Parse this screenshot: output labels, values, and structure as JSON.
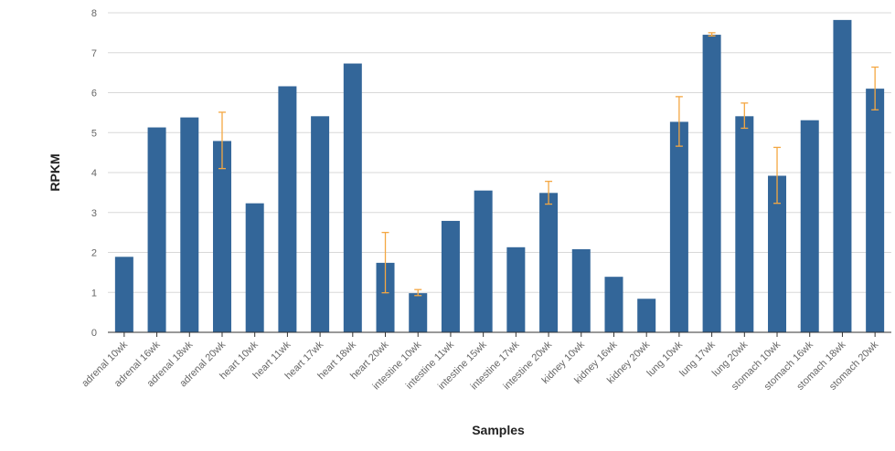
{
  "chart_data": {
    "type": "bar",
    "xlabel": "Samples",
    "ylabel": "RPKM",
    "ylim": [
      0,
      8
    ],
    "yticks": [
      0,
      1,
      2,
      3,
      4,
      5,
      6,
      7,
      8
    ],
    "grid": true,
    "categories": [
      "adrenal 10wk",
      "adrenal 16wk",
      "adrenal 18wk",
      "adrenal 20wk",
      "heart 10wk",
      "heart 11wk",
      "heart 17wk",
      "heart 18wk",
      "heart 20wk",
      "intestine 10wk",
      "intestine 11wk",
      "intestine 15wk",
      "intestine 17wk",
      "intestine 20wk",
      "kidney 10wk",
      "kidney 16wk",
      "kidney 20wk",
      "lung 10wk",
      "lung 17wk",
      "lung 20wk",
      "stomach 10wk",
      "stomach 16wk",
      "stomach 18wk",
      "stomach 20wk"
    ],
    "values": [
      1.89,
      5.13,
      5.38,
      4.79,
      3.23,
      6.16,
      5.41,
      6.73,
      1.74,
      0.98,
      2.79,
      3.55,
      2.13,
      3.49,
      2.08,
      1.39,
      0.84,
      5.27,
      7.45,
      5.41,
      3.92,
      5.31,
      7.82,
      6.1
    ],
    "error_low": [
      null,
      null,
      null,
      4.1,
      null,
      null,
      null,
      null,
      0.99,
      0.92,
      null,
      null,
      null,
      3.21,
      null,
      null,
      null,
      4.66,
      7.42,
      5.11,
      3.23,
      null,
      null,
      5.57
    ],
    "error_high": [
      null,
      null,
      null,
      5.51,
      null,
      null,
      null,
      null,
      2.5,
      1.07,
      null,
      null,
      null,
      3.78,
      null,
      null,
      null,
      5.9,
      7.5,
      5.74,
      4.63,
      null,
      null,
      6.64
    ],
    "colors": {
      "bar": "#336699",
      "error_bar": "#f4a742",
      "grid": "#d8d8d8",
      "axis": "#333333"
    }
  }
}
